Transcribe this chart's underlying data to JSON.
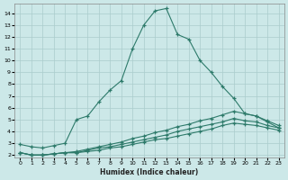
{
  "title": "",
  "xlabel": "Humidex (Indice chaleur)",
  "bg_color": "#cce8e8",
  "line_color": "#2d7a6a",
  "grid_color": "#aacccc",
  "xlim": [
    -0.5,
    23.5
  ],
  "ylim": [
    1.8,
    14.8
  ],
  "xticks": [
    0,
    1,
    2,
    3,
    4,
    5,
    6,
    7,
    8,
    9,
    10,
    11,
    12,
    13,
    14,
    15,
    16,
    17,
    18,
    19,
    20,
    21,
    22,
    23
  ],
  "yticks": [
    2,
    3,
    4,
    5,
    6,
    7,
    8,
    9,
    10,
    11,
    12,
    13,
    14
  ],
  "line1_x": [
    0,
    1,
    2,
    3,
    4,
    5,
    6,
    7,
    8,
    9,
    10,
    11,
    12,
    13,
    14,
    15,
    16,
    17,
    18,
    19,
    20,
    21,
    22,
    23
  ],
  "line1_y": [
    2.9,
    2.7,
    2.6,
    2.8,
    3.0,
    5.0,
    5.3,
    6.5,
    7.5,
    8.3,
    11.0,
    13.0,
    14.2,
    14.4,
    12.2,
    11.8,
    10.0,
    9.0,
    7.8,
    6.8,
    5.5,
    5.3,
    4.8,
    4.3
  ],
  "line2_x": [
    0,
    1,
    2,
    3,
    4,
    5,
    6,
    7,
    8,
    9,
    10,
    11,
    12,
    13,
    14,
    15,
    16,
    17,
    18,
    19,
    20,
    21,
    22,
    23
  ],
  "line2_y": [
    2.2,
    2.0,
    2.0,
    2.1,
    2.2,
    2.3,
    2.5,
    2.7,
    2.9,
    3.1,
    3.4,
    3.6,
    3.9,
    4.1,
    4.4,
    4.6,
    4.9,
    5.1,
    5.4,
    5.7,
    5.5,
    5.3,
    4.9,
    4.5
  ],
  "line3_x": [
    0,
    1,
    2,
    3,
    4,
    5,
    6,
    7,
    8,
    9,
    10,
    11,
    12,
    13,
    14,
    15,
    16,
    17,
    18,
    19,
    20,
    21,
    22,
    23
  ],
  "line3_y": [
    2.2,
    2.0,
    2.0,
    2.1,
    2.2,
    2.2,
    2.4,
    2.6,
    2.7,
    2.9,
    3.1,
    3.3,
    3.5,
    3.7,
    4.0,
    4.2,
    4.4,
    4.6,
    4.8,
    5.1,
    4.9,
    4.8,
    4.5,
    4.3
  ],
  "line4_x": [
    0,
    1,
    2,
    3,
    4,
    5,
    6,
    7,
    8,
    9,
    10,
    11,
    12,
    13,
    14,
    15,
    16,
    17,
    18,
    19,
    20,
    21,
    22,
    23
  ],
  "line4_y": [
    2.2,
    2.0,
    2.0,
    2.1,
    2.2,
    2.2,
    2.3,
    2.4,
    2.6,
    2.7,
    2.9,
    3.1,
    3.3,
    3.4,
    3.6,
    3.8,
    4.0,
    4.2,
    4.5,
    4.7,
    4.6,
    4.5,
    4.3,
    4.1
  ]
}
